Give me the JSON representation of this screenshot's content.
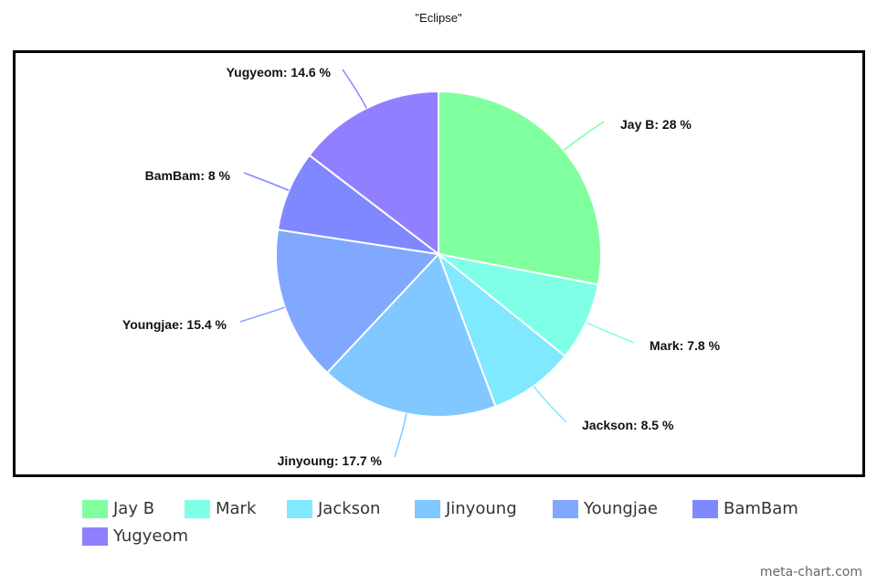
{
  "chart_data": {
    "type": "pie",
    "title": "\"Eclipse\"",
    "slices": [
      {
        "name": "Jay B",
        "value": 28,
        "label": "Jay B: 28 %",
        "color": "#80ff9f"
      },
      {
        "name": "Mark",
        "value": 7.8,
        "label": "Mark: 7.8 %",
        "color": "#80ffe7"
      },
      {
        "name": "Jackson",
        "value": 8.5,
        "label": "Jackson: 8.5 %",
        "color": "#80e8ff"
      },
      {
        "name": "Jinyoung",
        "value": 17.7,
        "label": "Jinyoung: 17.7 %",
        "color": "#80c8ff"
      },
      {
        "name": "Youngjae",
        "value": 15.4,
        "label": "Youngjae: 15.4 %",
        "color": "#80a8ff"
      },
      {
        "name": "BamBam",
        "value": 8,
        "label": "BamBam: 8 %",
        "color": "#8088ff"
      },
      {
        "name": "Yugyeom",
        "value": 14.6,
        "label": "Yugyeom: 14.6 %",
        "color": "#9080ff"
      }
    ],
    "legend_position": "bottom"
  },
  "watermark": "meta-chart.com"
}
